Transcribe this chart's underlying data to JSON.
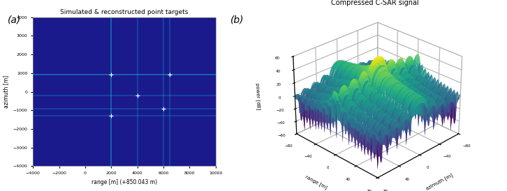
{
  "title_a": "Simulated & reconstructed point targets",
  "title_b": "Compressed C-SAR signal",
  "xlabel_a": "range [m] (+850.043 m)",
  "ylabel_a": "azimuth [m]",
  "zlabel_b": "power [dB]",
  "xlabel_b": "azimuth [m]",
  "ylabel_b": "range [m]",
  "xlim_a": [
    -4000,
    10000
  ],
  "ylim_a": [
    -4000,
    4000
  ],
  "xticks_a": [
    -4000,
    -2000,
    0,
    2000,
    4000,
    6000,
    8000,
    10000
  ],
  "yticks_a": [
    -4000,
    -3000,
    -2000,
    -1000,
    0,
    1000,
    2000,
    3000,
    4000
  ],
  "bg_color": "#1a1a8c",
  "point_targets": [
    [
      2000,
      -1300
    ],
    [
      6000,
      -900
    ],
    [
      4000,
      -200
    ],
    [
      2000,
      900
    ],
    [
      6500,
      900
    ]
  ],
  "label_a": "(a)",
  "label_b": "(b)",
  "surf_range": 80,
  "surf_azimuth": 80,
  "zlim_b": [
    -60,
    60
  ],
  "zticks_b": [
    -60,
    -40,
    -20,
    0,
    20,
    40,
    60
  ],
  "elev": 28,
  "azim": 45
}
